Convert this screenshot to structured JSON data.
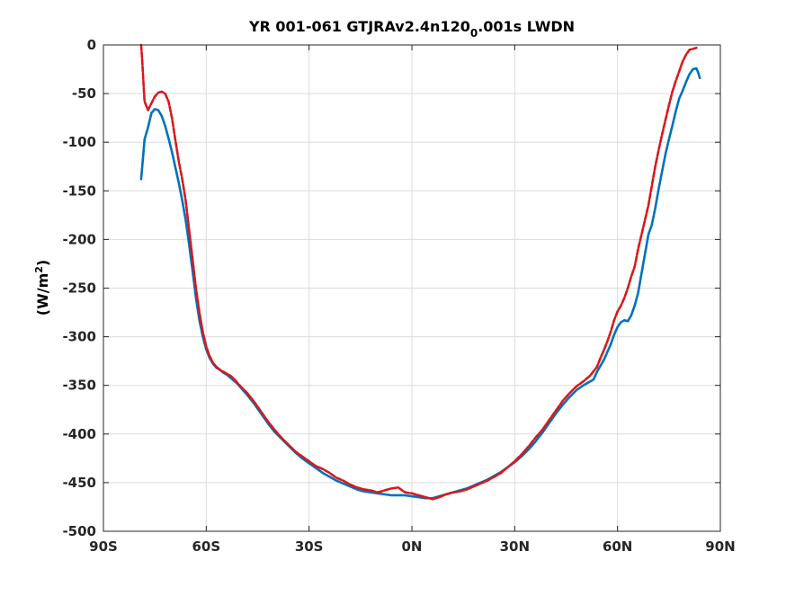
{
  "chart_data": {
    "type": "line",
    "title_main": "YR 001-061 GTJRAv2.4n120",
    "title_sub": "0",
    "title_tail": ".001s LWDN",
    "ylabel_main": "(W/m",
    "ylabel_sup": "2",
    "ylabel_tail": ")",
    "xlim": [
      -90,
      90
    ],
    "ylim": [
      -500,
      0
    ],
    "xticks": [
      {
        "value": -90,
        "label": "90S"
      },
      {
        "value": -60,
        "label": "60S"
      },
      {
        "value": -30,
        "label": "30S"
      },
      {
        "value": 0,
        "label": "0N"
      },
      {
        "value": 30,
        "label": "30N"
      },
      {
        "value": 60,
        "label": "60N"
      },
      {
        "value": 90,
        "label": "90N"
      }
    ],
    "yticks": [
      {
        "value": 0,
        "label": "0"
      },
      {
        "value": -50,
        "label": "-50"
      },
      {
        "value": -100,
        "label": "-100"
      },
      {
        "value": -150,
        "label": "-150"
      },
      {
        "value": -200,
        "label": "-200"
      },
      {
        "value": -250,
        "label": "-250"
      },
      {
        "value": -300,
        "label": "-300"
      },
      {
        "value": -350,
        "label": "-350"
      },
      {
        "value": -400,
        "label": "-400"
      },
      {
        "value": -450,
        "label": "-450"
      },
      {
        "value": -500,
        "label": "-500"
      }
    ],
    "grid": true,
    "series": [
      {
        "color": "#0072BD",
        "style": "solid",
        "points": [
          [
            -79,
            -138
          ],
          [
            -78.5,
            -118
          ],
          [
            -78,
            -97
          ],
          [
            -77,
            -85
          ],
          [
            -76,
            -70
          ],
          [
            -75,
            -66
          ],
          [
            -74,
            -67
          ],
          [
            -73,
            -73
          ],
          [
            -72,
            -83
          ],
          [
            -71,
            -96
          ],
          [
            -70,
            -110
          ],
          [
            -69,
            -126
          ],
          [
            -68,
            -142
          ],
          [
            -67,
            -160
          ],
          [
            -66,
            -180
          ],
          [
            -65,
            -205
          ],
          [
            -64,
            -232
          ],
          [
            -63,
            -260
          ],
          [
            -62,
            -283
          ],
          [
            -61,
            -300
          ],
          [
            -60,
            -313
          ],
          [
            -59,
            -322
          ],
          [
            -58,
            -328
          ],
          [
            -57,
            -332
          ],
          [
            -56,
            -334
          ],
          [
            -55,
            -337
          ],
          [
            -54,
            -339
          ],
          [
            -53,
            -342
          ],
          [
            -52,
            -345
          ],
          [
            -51,
            -348
          ],
          [
            -50,
            -352
          ],
          [
            -48,
            -360
          ],
          [
            -46,
            -369
          ],
          [
            -44,
            -379
          ],
          [
            -42,
            -389
          ],
          [
            -40,
            -398
          ],
          [
            -38,
            -405
          ],
          [
            -36,
            -412
          ],
          [
            -34,
            -419
          ],
          [
            -32,
            -425
          ],
          [
            -30,
            -430
          ],
          [
            -28,
            -435
          ],
          [
            -26,
            -440
          ],
          [
            -24,
            -444
          ],
          [
            -22,
            -448
          ],
          [
            -20,
            -451
          ],
          [
            -18,
            -454
          ],
          [
            -16,
            -457
          ],
          [
            -14,
            -459
          ],
          [
            -12,
            -460
          ],
          [
            -10,
            -461
          ],
          [
            -8,
            -462
          ],
          [
            -6,
            -463
          ],
          [
            -4,
            -463
          ],
          [
            -2,
            -463
          ],
          [
            0,
            -464
          ],
          [
            2,
            -465
          ],
          [
            4,
            -466
          ],
          [
            6,
            -466
          ],
          [
            8,
            -464
          ],
          [
            10,
            -462
          ],
          [
            12,
            -460
          ],
          [
            14,
            -458
          ],
          [
            16,
            -456
          ],
          [
            18,
            -453
          ],
          [
            20,
            -450
          ],
          [
            22,
            -447
          ],
          [
            24,
            -443
          ],
          [
            26,
            -439
          ],
          [
            28,
            -434
          ],
          [
            30,
            -429
          ],
          [
            32,
            -423
          ],
          [
            34,
            -416
          ],
          [
            36,
            -408
          ],
          [
            38,
            -399
          ],
          [
            40,
            -389
          ],
          [
            42,
            -379
          ],
          [
            44,
            -370
          ],
          [
            46,
            -362
          ],
          [
            48,
            -355
          ],
          [
            50,
            -350
          ],
          [
            52,
            -346
          ],
          [
            53,
            -344
          ],
          [
            54,
            -336
          ],
          [
            55,
            -330
          ],
          [
            56,
            -324
          ],
          [
            57,
            -316
          ],
          [
            58,
            -308
          ],
          [
            59,
            -298
          ],
          [
            60,
            -290
          ],
          [
            61,
            -285
          ],
          [
            62,
            -283
          ],
          [
            63,
            -284
          ],
          [
            64,
            -278
          ],
          [
            65,
            -268
          ],
          [
            66,
            -255
          ],
          [
            67,
            -235
          ],
          [
            68,
            -215
          ],
          [
            69,
            -195
          ],
          [
            70,
            -185
          ],
          [
            71,
            -168
          ],
          [
            72,
            -148
          ],
          [
            73,
            -130
          ],
          [
            74,
            -112
          ],
          [
            75,
            -97
          ],
          [
            76,
            -83
          ],
          [
            77,
            -68
          ],
          [
            78,
            -55
          ],
          [
            79,
            -47
          ],
          [
            80,
            -38
          ],
          [
            81,
            -30
          ],
          [
            82,
            -25
          ],
          [
            83,
            -24
          ],
          [
            83.5,
            -28
          ],
          [
            84,
            -34
          ]
        ]
      },
      {
        "color": "#D7191C",
        "style": "dashed",
        "points": [
          [
            -79,
            0
          ],
          [
            -78.7,
            -15
          ],
          [
            -78.3,
            -40
          ],
          [
            -78,
            -58
          ],
          [
            -77,
            -67
          ],
          [
            -76,
            -60
          ],
          [
            -75,
            -53
          ],
          [
            -74,
            -49
          ],
          [
            -73,
            -48
          ],
          [
            -72,
            -50
          ],
          [
            -71,
            -58
          ],
          [
            -70,
            -75
          ],
          [
            -69,
            -98
          ],
          [
            -68,
            -120
          ],
          [
            -67,
            -138
          ],
          [
            -66,
            -160
          ],
          [
            -65,
            -190
          ],
          [
            -64,
            -220
          ],
          [
            -63,
            -250
          ],
          [
            -62,
            -275
          ],
          [
            -61,
            -295
          ],
          [
            -60,
            -310
          ],
          [
            -59,
            -320
          ],
          [
            -58,
            -327
          ],
          [
            -57,
            -331
          ],
          [
            -56,
            -334
          ],
          [
            -55,
            -336
          ],
          [
            -54,
            -338
          ],
          [
            -53,
            -340
          ],
          [
            -52,
            -343
          ],
          [
            -51,
            -347
          ],
          [
            -50,
            -351
          ],
          [
            -48,
            -358
          ],
          [
            -46,
            -367
          ],
          [
            -44,
            -377
          ],
          [
            -42,
            -387
          ],
          [
            -40,
            -396
          ],
          [
            -38,
            -404
          ],
          [
            -36,
            -411
          ],
          [
            -34,
            -418
          ],
          [
            -32,
            -423
          ],
          [
            -30,
            -428
          ],
          [
            -28,
            -433
          ],
          [
            -26,
            -436
          ],
          [
            -24,
            -440
          ],
          [
            -22,
            -445
          ],
          [
            -20,
            -448
          ],
          [
            -18,
            -452
          ],
          [
            -16,
            -455
          ],
          [
            -14,
            -457
          ],
          [
            -12,
            -458
          ],
          [
            -10,
            -460
          ],
          [
            -8,
            -458
          ],
          [
            -6,
            -456
          ],
          [
            -4,
            -455
          ],
          [
            -2,
            -460
          ],
          [
            0,
            -461
          ],
          [
            2,
            -463
          ],
          [
            4,
            -465
          ],
          [
            6,
            -467
          ],
          [
            8,
            -465
          ],
          [
            10,
            -462
          ],
          [
            12,
            -460
          ],
          [
            14,
            -459
          ],
          [
            16,
            -457
          ],
          [
            18,
            -454
          ],
          [
            20,
            -451
          ],
          [
            22,
            -448
          ],
          [
            24,
            -444
          ],
          [
            26,
            -440
          ],
          [
            28,
            -434
          ],
          [
            30,
            -428
          ],
          [
            32,
            -421
          ],
          [
            34,
            -413
          ],
          [
            36,
            -404
          ],
          [
            38,
            -396
          ],
          [
            40,
            -386
          ],
          [
            42,
            -376
          ],
          [
            44,
            -366
          ],
          [
            46,
            -358
          ],
          [
            48,
            -351
          ],
          [
            50,
            -346
          ],
          [
            52,
            -340
          ],
          [
            54,
            -331
          ],
          [
            55,
            -322
          ],
          [
            56,
            -314
          ],
          [
            57,
            -305
          ],
          [
            58,
            -295
          ],
          [
            59,
            -283
          ],
          [
            60,
            -274
          ],
          [
            61,
            -268
          ],
          [
            62,
            -260
          ],
          [
            63,
            -250
          ],
          [
            64,
            -238
          ],
          [
            65,
            -228
          ],
          [
            66,
            -210
          ],
          [
            67,
            -195
          ],
          [
            68,
            -180
          ],
          [
            69,
            -165
          ],
          [
            70,
            -145
          ],
          [
            71,
            -125
          ],
          [
            72,
            -108
          ],
          [
            73,
            -92
          ],
          [
            74,
            -77
          ],
          [
            75,
            -62
          ],
          [
            76,
            -48
          ],
          [
            77,
            -37
          ],
          [
            78,
            -27
          ],
          [
            79,
            -17
          ],
          [
            80,
            -10
          ],
          [
            81,
            -5
          ],
          [
            82,
            -4
          ],
          [
            83,
            -3
          ]
        ]
      }
    ]
  }
}
